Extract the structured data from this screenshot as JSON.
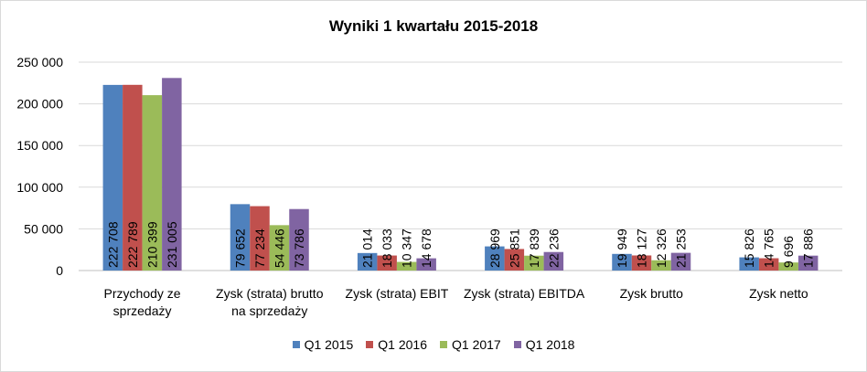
{
  "chart_data": {
    "type": "bar",
    "title": "Wyniki 1 kwartału 2015-2018",
    "categories": [
      [
        "Przychody ze",
        "sprzedaży"
      ],
      [
        "Zysk (strata) brutto",
        "na sprzedaży"
      ],
      [
        "Zysk (strata) EBIT"
      ],
      [
        "Zysk (strata) EBITDA"
      ],
      [
        "Zysk brutto"
      ],
      [
        "Zysk netto"
      ]
    ],
    "series": [
      {
        "name": "Q1 2015",
        "color": "#4f81bd",
        "values": [
          222708,
          79652,
          21014,
          28969,
          19949,
          15826
        ],
        "labels": [
          "222 708",
          "79 652",
          "21 014",
          "28 969",
          "19 949",
          "15 826"
        ]
      },
      {
        "name": "Q1 2016",
        "color": "#c0504d",
        "values": [
          222789,
          77234,
          18033,
          25851,
          18127,
          14765
        ],
        "labels": [
          "222 789",
          "77 234",
          "18 033",
          "25 851",
          "18 127",
          "14 765"
        ]
      },
      {
        "name": "Q1 2017",
        "color": "#9bbb59",
        "values": [
          210399,
          54446,
          10347,
          17839,
          12326,
          9696
        ],
        "labels": [
          "210 399",
          "54 446",
          "10 347",
          "17 839",
          "12 326",
          "9 696"
        ]
      },
      {
        "name": "Q1 2018",
        "color": "#8064a2",
        "values": [
          231005,
          73786,
          14678,
          22236,
          21253,
          17886
        ],
        "labels": [
          "231 005",
          "73 786",
          "14 678",
          "22 236",
          "21 253",
          "17 886"
        ]
      }
    ],
    "ylim": [
      0,
      250000
    ],
    "yticks": [
      0,
      50000,
      100000,
      150000,
      200000,
      250000
    ],
    "ytick_labels": [
      "0",
      "50 000",
      "100 000",
      "150 000",
      "200 000",
      "250 000"
    ],
    "grid": true,
    "legend_position": "bottom"
  }
}
